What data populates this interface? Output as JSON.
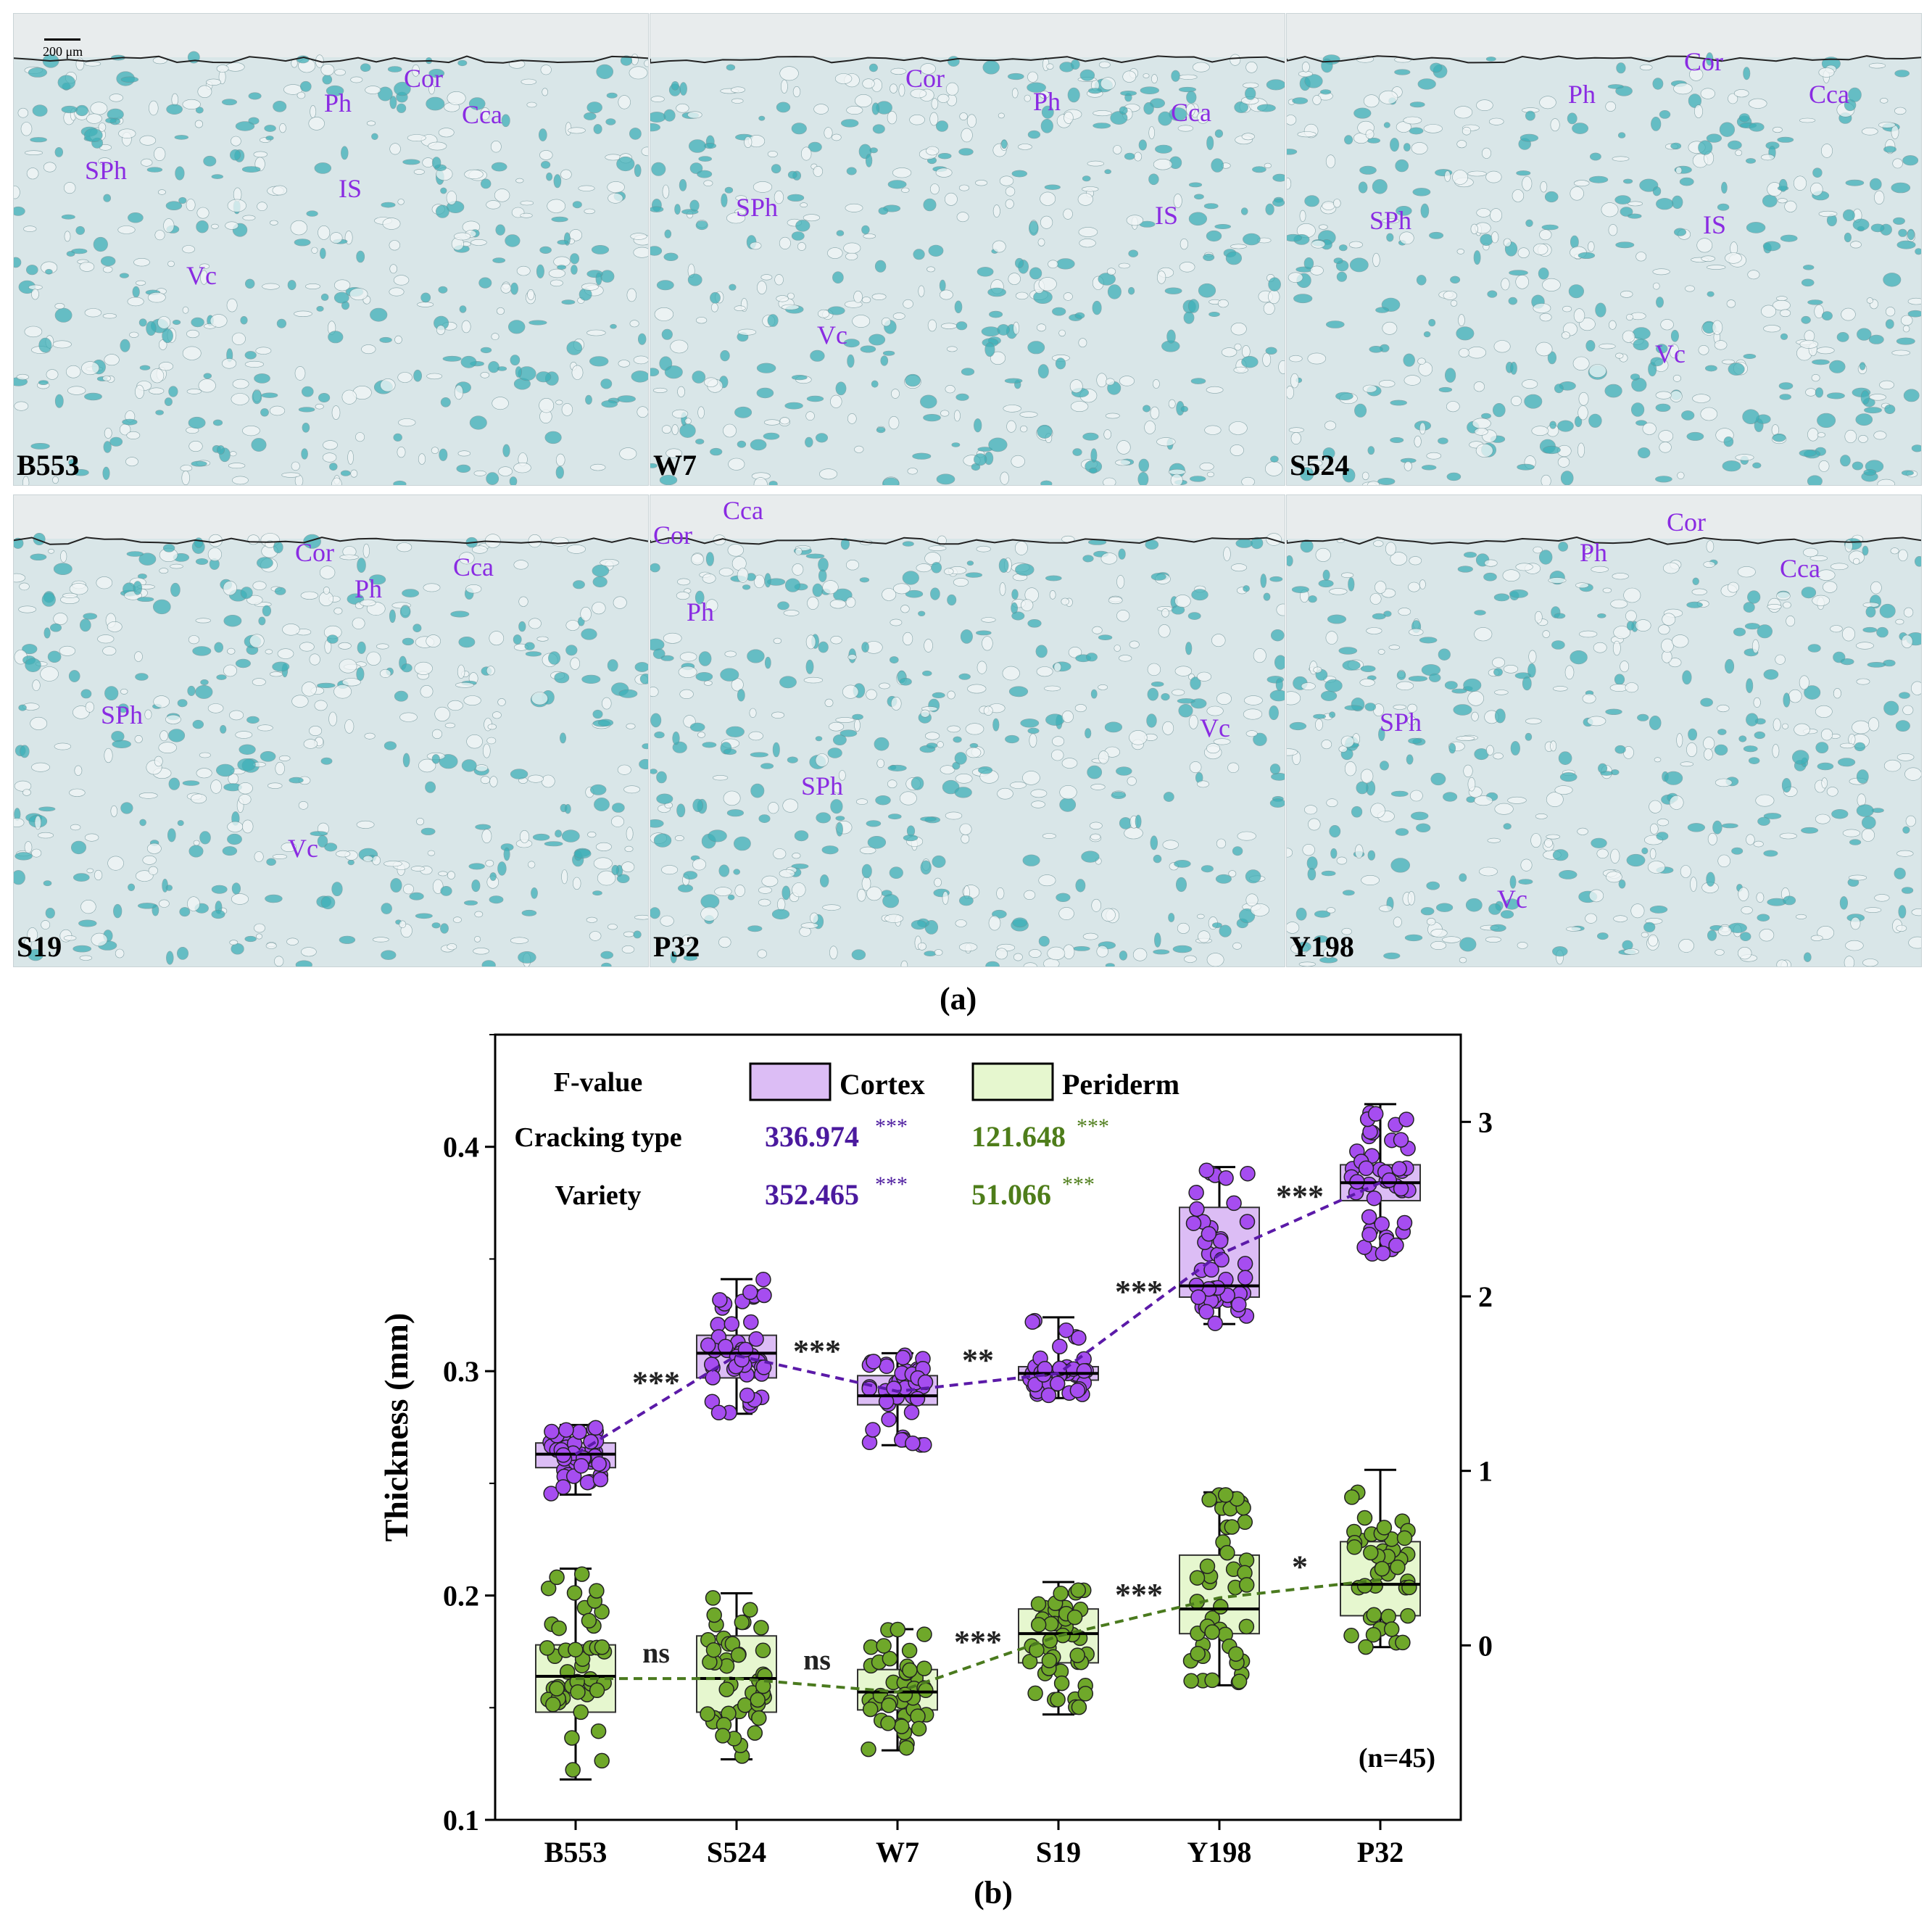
{
  "panel_a": {
    "caption": "(a)",
    "scale_bar": "200 μm",
    "images": [
      {
        "name": "B553",
        "labels": [
          "Cor",
          "Ph",
          "Cca",
          "SPh",
          "IS",
          "Vc"
        ]
      },
      {
        "name": "W7",
        "labels": [
          "Cor",
          "Ph",
          "Cca",
          "SPh",
          "IS",
          "Vc"
        ]
      },
      {
        "name": "S524",
        "labels": [
          "Cor",
          "Ph",
          "Cca",
          "SPh",
          "IS",
          "Vc"
        ]
      },
      {
        "name": "S19",
        "labels": [
          "Cor",
          "Ph",
          "Cca",
          "SPh",
          "Vc"
        ]
      },
      {
        "name": "P32",
        "labels": [
          "Cca",
          "Cor",
          "Ph",
          "SPh",
          "Vc"
        ]
      },
      {
        "name": "Y198",
        "labels": [
          "Cor",
          "Ph",
          "Cca",
          "SPh",
          "Vc"
        ]
      }
    ]
  },
  "panel_b": {
    "caption": "(b)",
    "n_label": "(n=45)",
    "stats": {
      "header": "F-value",
      "rows": [
        {
          "label": "Cracking type",
          "cortex": "336.974",
          "cortex_sig": "***",
          "periderm": "121.648",
          "periderm_sig": "***"
        },
        {
          "label": "Variety",
          "cortex": "352.465",
          "cortex_sig": "***",
          "periderm": "51.066",
          "periderm_sig": "***"
        }
      ]
    },
    "colors": {
      "cortex_fill": "#dcbdf5",
      "cortex_point": "#a64df0",
      "cortex_line": "#5b1aa8",
      "periderm_fill": "#e6f7cf",
      "periderm_point": "#6fa82a",
      "periderm_line": "#4a7a1e",
      "cortex_text": "#4b1a9e",
      "periderm_text": "#4e7d1a"
    }
  },
  "chart_data": {
    "type": "box",
    "categories": [
      "B553",
      "S524",
      "W7",
      "S19",
      "Y198",
      "P32"
    ],
    "ylabel": "Thickness (mm)",
    "ylabel_right": "Thickness (mm)",
    "ylim": [
      0.1,
      0.45
    ],
    "yticks": [
      0.1,
      0.2,
      0.3,
      0.4
    ],
    "ylim_right": [
      -1.0,
      3.5
    ],
    "yticks_right": [
      0,
      1,
      2,
      3
    ],
    "legend": [
      "Cortex",
      "Periderm"
    ],
    "series": [
      {
        "name": "Cortex",
        "boxes": [
          {
            "whisker_low": 0.245,
            "q1": 0.257,
            "median": 0.263,
            "q3": 0.268,
            "whisker_high": 0.276
          },
          {
            "whisker_low": 0.281,
            "q1": 0.297,
            "median": 0.308,
            "q3": 0.316,
            "whisker_high": 0.341
          },
          {
            "whisker_low": 0.267,
            "q1": 0.285,
            "median": 0.289,
            "q3": 0.298,
            "whisker_high": 0.308
          },
          {
            "whisker_low": 0.288,
            "q1": 0.296,
            "median": 0.299,
            "q3": 0.302,
            "whisker_high": 0.324
          },
          {
            "whisker_low": 0.321,
            "q1": 0.333,
            "median": 0.338,
            "q3": 0.373,
            "whisker_high": 0.391
          },
          {
            "whisker_low": 0.352,
            "q1": 0.376,
            "median": 0.384,
            "q3": 0.392,
            "whisker_high": 0.419
          }
        ],
        "means": [
          0.263,
          0.307,
          0.291,
          0.299,
          0.352,
          0.384
        ],
        "comparisons": [
          "***",
          "***",
          "**",
          "***",
          "***"
        ]
      },
      {
        "name": "Periderm",
        "boxes": [
          {
            "whisker_low": 0.118,
            "q1": 0.148,
            "median": 0.164,
            "q3": 0.178,
            "whisker_high": 0.212
          },
          {
            "whisker_low": 0.127,
            "q1": 0.148,
            "median": 0.163,
            "q3": 0.182,
            "whisker_high": 0.201
          },
          {
            "whisker_low": 0.131,
            "q1": 0.149,
            "median": 0.157,
            "q3": 0.167,
            "whisker_high": 0.185
          },
          {
            "whisker_low": 0.147,
            "q1": 0.17,
            "median": 0.183,
            "q3": 0.194,
            "whisker_high": 0.206
          },
          {
            "whisker_low": 0.16,
            "q1": 0.183,
            "median": 0.194,
            "q3": 0.218,
            "whisker_high": 0.246
          },
          {
            "whisker_low": 0.177,
            "q1": 0.191,
            "median": 0.205,
            "q3": 0.224,
            "whisker_high": 0.256
          }
        ],
        "means": [
          0.163,
          0.163,
          0.157,
          0.182,
          0.199,
          0.207
        ],
        "comparisons": [
          "ns",
          "ns",
          "***",
          "***",
          "*"
        ]
      }
    ]
  }
}
